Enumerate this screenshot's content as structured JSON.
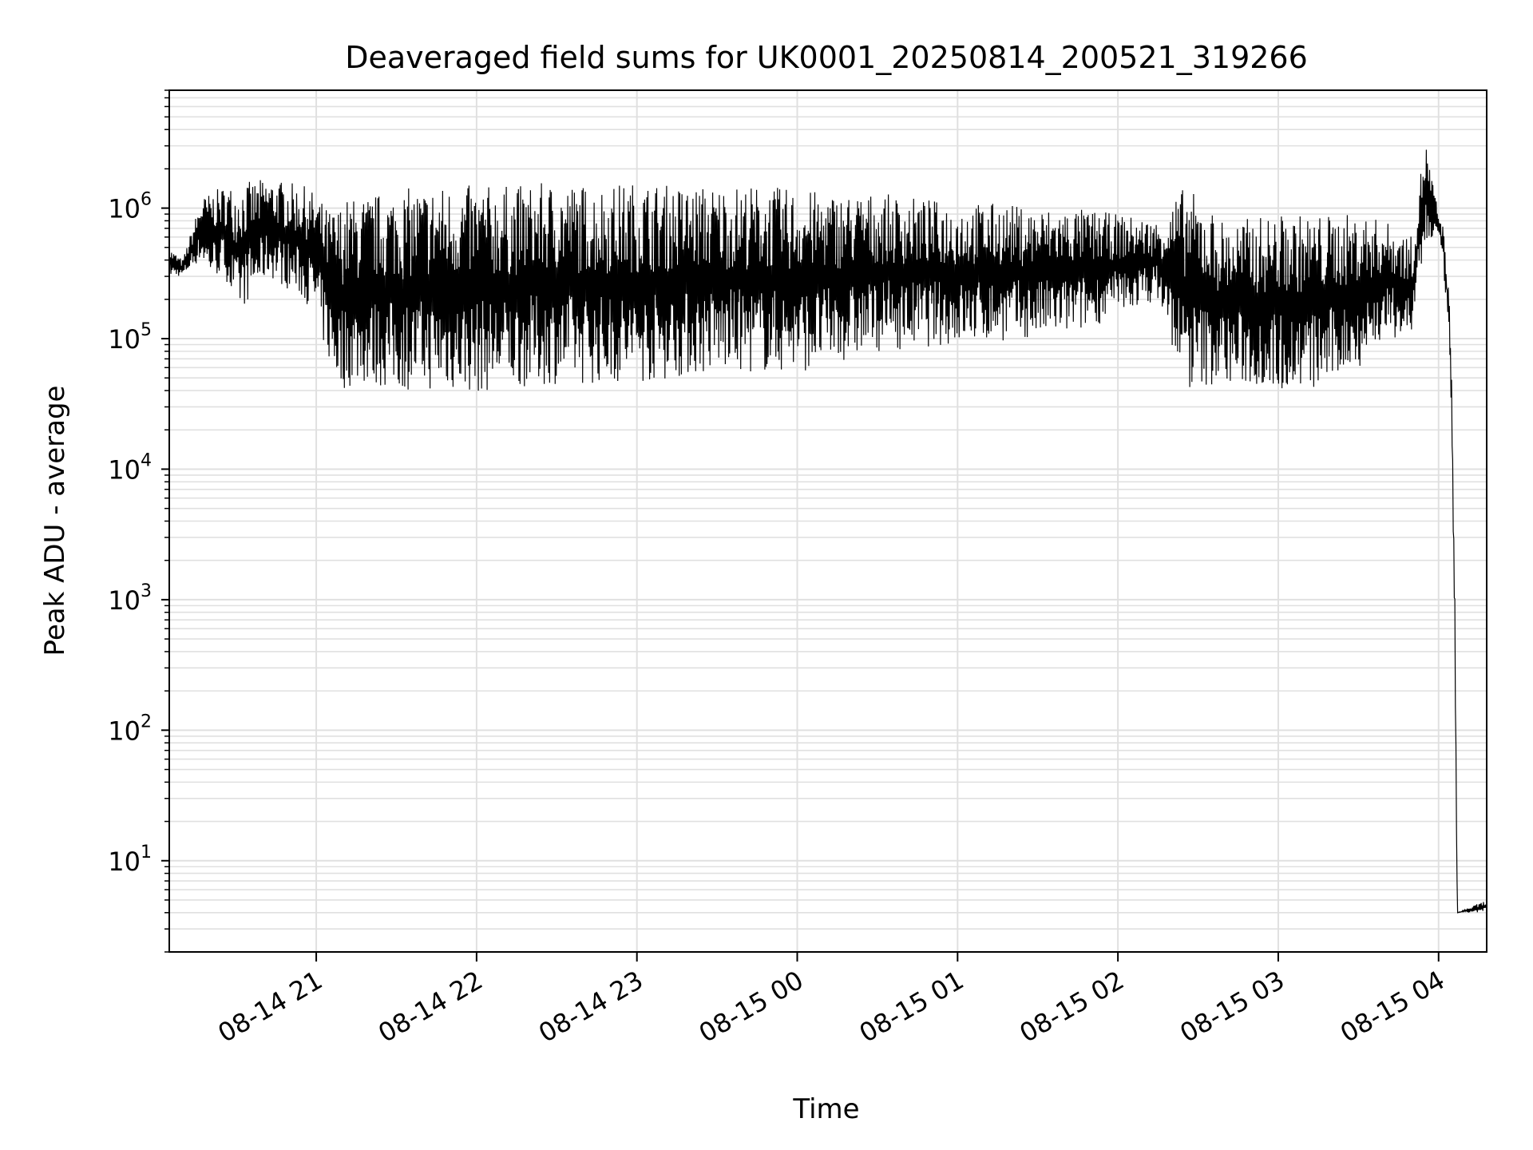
{
  "chart_data": {
    "type": "line",
    "title": "Deaveraged field sums for UK0001_20250814_200521_319266",
    "xlabel": "Time",
    "ylabel": "Peak ADU - average",
    "y_scale": "log",
    "ylim": [
      2,
      8000000
    ],
    "xlim": [
      "2025-08-14 20:05",
      "2025-08-15 04:18"
    ],
    "grid": true,
    "line_color": "#000000",
    "grid_color": "#e0e0e0",
    "x_ticks": [
      {
        "value": "2025-08-14 21:00",
        "label": "08-14 21"
      },
      {
        "value": "2025-08-14 22:00",
        "label": "08-14 22"
      },
      {
        "value": "2025-08-14 23:00",
        "label": "08-14 23"
      },
      {
        "value": "2025-08-15 00:00",
        "label": "08-15 00"
      },
      {
        "value": "2025-08-15 01:00",
        "label": "08-15 01"
      },
      {
        "value": "2025-08-15 02:00",
        "label": "08-15 02"
      },
      {
        "value": "2025-08-15 03:00",
        "label": "08-15 03"
      },
      {
        "value": "2025-08-15 04:00",
        "label": "08-15 04"
      }
    ],
    "y_ticks": [
      {
        "value": 10,
        "base": "10",
        "exp": "1"
      },
      {
        "value": 100,
        "base": "10",
        "exp": "2"
      },
      {
        "value": 1000,
        "base": "10",
        "exp": "3"
      },
      {
        "value": 10000,
        "base": "10",
        "exp": "4"
      },
      {
        "value": 100000,
        "base": "10",
        "exp": "5"
      },
      {
        "value": 1000000,
        "base": "10",
        "exp": "6"
      }
    ],
    "series": [
      {
        "x": [
          "2025-08-14 20:05",
          "2025-08-14 20:10",
          "2025-08-14 20:17",
          "2025-08-14 20:20",
          "2025-08-14 20:26",
          "2025-08-14 20:30",
          "2025-08-14 20:35",
          "2025-08-14 20:42",
          "2025-08-14 20:48",
          "2025-08-14 20:55",
          "2025-08-14 21:00",
          "2025-08-14 21:04",
          "2025-08-14 21:08",
          "2025-08-14 21:10",
          "2025-08-14 21:15",
          "2025-08-14 21:30",
          "2025-08-14 21:45",
          "2025-08-14 22:00",
          "2025-08-14 22:15",
          "2025-08-14 22:30",
          "2025-08-14 22:45",
          "2025-08-14 23:00",
          "2025-08-14 23:15",
          "2025-08-14 23:30",
          "2025-08-14 23:45",
          "2025-08-15 00:00",
          "2025-08-15 00:15",
          "2025-08-15 00:30",
          "2025-08-15 00:45",
          "2025-08-15 01:00",
          "2025-08-15 01:15",
          "2025-08-15 01:30",
          "2025-08-15 01:45",
          "2025-08-15 02:00",
          "2025-08-15 02:15",
          "2025-08-15 02:25",
          "2025-08-15 02:40",
          "2025-08-15 03:00",
          "2025-08-15 03:15",
          "2025-08-15 03:30",
          "2025-08-15 03:40",
          "2025-08-15 03:50",
          "2025-08-15 03:55",
          "2025-08-15 04:00",
          "2025-08-15 04:02",
          "2025-08-15 04:04",
          "2025-08-15 04:05",
          "2025-08-15 04:06",
          "2025-08-15 04:07",
          "2025-08-15 04:18"
        ],
        "y_high": [
          500000,
          400000,
          1200000,
          1300000,
          1500000,
          1500000,
          1600000,
          1700000,
          1600000,
          1500000,
          1300000,
          1000000,
          1000000,
          1200000,
          1200000,
          1400000,
          1500000,
          1500000,
          1500000,
          1600000,
          1500000,
          1600000,
          1500000,
          1500000,
          1500000,
          1400000,
          1300000,
          1300000,
          1200000,
          1100000,
          1100000,
          1000000,
          1000000,
          900000,
          800000,
          1500000,
          800000,
          900000,
          900000,
          900000,
          800000,
          600000,
          3500000,
          900000,
          700000,
          200000,
          40000,
          2000,
          4,
          5
        ],
        "y_low": [
          300000,
          300000,
          400000,
          300000,
          300000,
          150000,
          200000,
          300000,
          250000,
          200000,
          150000,
          70000,
          45000,
          40000,
          45000,
          40000,
          40000,
          38000,
          42000,
          45000,
          45000,
          45000,
          50000,
          55000,
          55000,
          55000,
          65000,
          80000,
          85000,
          90000,
          95000,
          100000,
          110000,
          150000,
          200000,
          40000,
          45000,
          40000,
          40000,
          60000,
          100000,
          100000,
          500000,
          600000,
          300000,
          100000,
          10000,
          500,
          4,
          4
        ]
      }
    ]
  }
}
